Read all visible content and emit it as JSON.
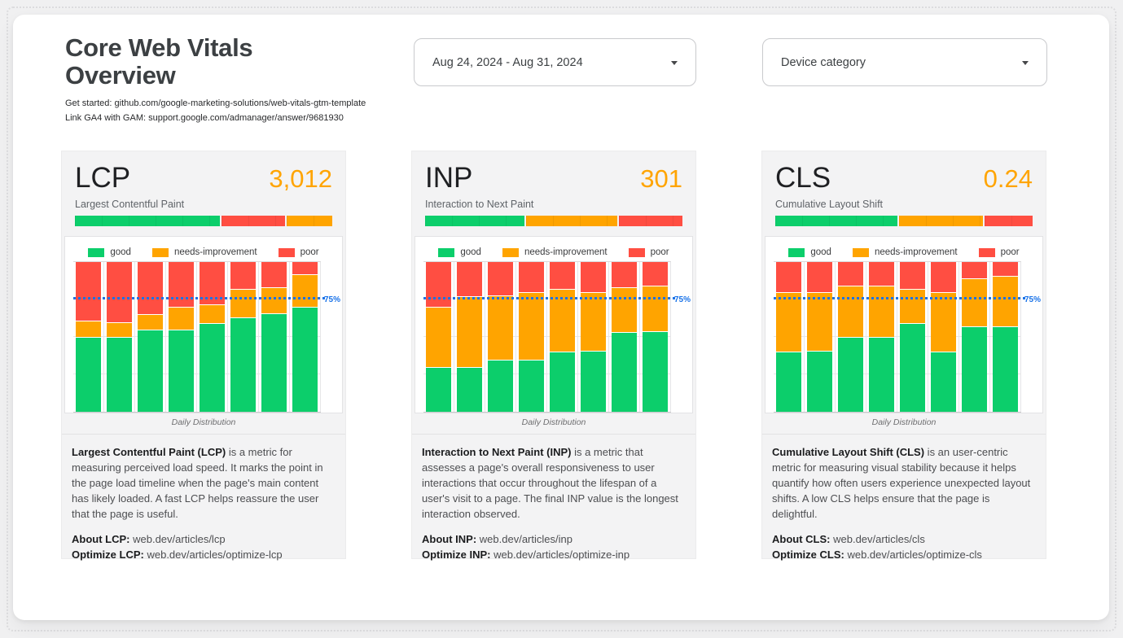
{
  "page": {
    "title_line1": "Core Web Vitals",
    "title_line2": "Overview",
    "links": [
      "Get started: github.com/google-marketing-solutions/web-vitals-gtm-template",
      "Link GA4 with GAM: support.google.com/admanager/answer/9681930"
    ]
  },
  "filters": {
    "date_range": "Aug 24, 2024 - Aug 31, 2024",
    "device_category": "Device category"
  },
  "legend": {
    "good": "good",
    "needs_improvement": "needs-improvement",
    "poor": "poor"
  },
  "colors": {
    "good": "#0CCE6B",
    "needs_improvement": "#FFA400",
    "poor": "#FF4E42",
    "value_accent": "#FFA400",
    "reference_line": "#1A73E8"
  },
  "reference": {
    "label": "75%",
    "value": 75
  },
  "caption": "Daily Distribution",
  "cards": [
    {
      "title": "LCP",
      "value": "3,012",
      "subtitle": "Largest Contentful Paint",
      "description_bold": "Largest Contentful Paint (LCP)",
      "description_rest": " is a metric for measuring perceived load speed. It marks the point in the page load timeline when the page's main content has likely loaded. A fast LCP helps reassure the user that the page is useful.",
      "about_label": "About LCP:",
      "about_url": "web.dev/articles/lcp",
      "optimize_label": "Optimize LCP:",
      "optimize_url": "web.dev/articles/optimize-lcp"
    },
    {
      "title": "INP",
      "value": "301",
      "subtitle": "Interaction to Next Paint",
      "description_bold": "Interaction to Next Paint (INP)",
      "description_rest": " is a metric that assesses a page's overall responsiveness to user interactions that occur throughout the lifespan of a user's visit to a page. The final INP value is the longest interaction observed.",
      "about_label": "About INP:",
      "about_url": "web.dev/articles/inp",
      "optimize_label": "Optimize INP:",
      "optimize_url": "web.dev/articles/optimize-inp"
    },
    {
      "title": "CLS",
      "value": "0.24",
      "subtitle": "Cumulative Layout Shift",
      "description_bold": "Cumulative Layout Shift (CLS)",
      "description_rest": " is an user-centric metric for measuring visual stability because it helps quantify how often users experience unexpected layout shifts. A low CLS helps ensure that the page is delightful.",
      "about_label": "About CLS:",
      "about_url": "web.dev/articles/cls",
      "optimize_label": "Optimize CLS:",
      "optimize_url": "web.dev/articles/optimize-cls"
    }
  ],
  "chart_data": [
    {
      "metric": "LCP",
      "type": "bar",
      "stacked": "percent",
      "title": "Daily Distribution",
      "ylim": [
        0,
        100
      ],
      "grid": [
        25,
        50
      ],
      "reference_line": {
        "value": 75,
        "label": "75%"
      },
      "summary": [
        {
          "key": "good",
          "pct": 57
        },
        {
          "key": "poor",
          "pct": 25
        },
        {
          "key": "needs_improvement",
          "pct": 18
        }
      ],
      "series": [
        {
          "key": "good",
          "name": "good",
          "values": [
            50,
            50,
            55,
            55,
            59,
            63,
            66,
            70
          ]
        },
        {
          "key": "needs_improvement",
          "name": "needs-improvement",
          "values": [
            11,
            10,
            10,
            15,
            13,
            19,
            17,
            22
          ]
        },
        {
          "key": "poor",
          "name": "poor",
          "values": [
            39,
            40,
            35,
            30,
            28,
            18,
            17,
            8
          ]
        }
      ]
    },
    {
      "metric": "INP",
      "type": "bar",
      "stacked": "percent",
      "title": "Daily Distribution",
      "ylim": [
        0,
        100
      ],
      "grid": [
        25,
        50
      ],
      "reference_line": {
        "value": 75,
        "label": "75%"
      },
      "summary": [
        {
          "key": "good",
          "pct": 39
        },
        {
          "key": "needs_improvement",
          "pct": 36
        },
        {
          "key": "poor",
          "pct": 25
        }
      ],
      "series": [
        {
          "key": "good",
          "name": "good",
          "values": [
            30,
            30,
            35,
            35,
            40,
            41,
            53,
            54
          ]
        },
        {
          "key": "needs_improvement",
          "name": "needs-improvement",
          "values": [
            40,
            47,
            43,
            45,
            42,
            39,
            30,
            30
          ]
        },
        {
          "key": "poor",
          "name": "poor",
          "values": [
            30,
            23,
            22,
            20,
            18,
            20,
            17,
            16
          ]
        }
      ]
    },
    {
      "metric": "CLS",
      "type": "bar",
      "stacked": "percent",
      "title": "Daily Distribution",
      "ylim": [
        0,
        100
      ],
      "grid": [
        25,
        50
      ],
      "reference_line": {
        "value": 75,
        "label": "75%"
      },
      "summary": [
        {
          "key": "good",
          "pct": 48
        },
        {
          "key": "needs_improvement",
          "pct": 33
        },
        {
          "key": "poor",
          "pct": 19
        }
      ],
      "series": [
        {
          "key": "good",
          "name": "good",
          "values": [
            40,
            41,
            50,
            50,
            59,
            40,
            57,
            57
          ]
        },
        {
          "key": "needs_improvement",
          "name": "needs-improvement",
          "values": [
            40,
            39,
            34,
            34,
            23,
            40,
            32,
            34
          ]
        },
        {
          "key": "poor",
          "name": "poor",
          "values": [
            20,
            20,
            16,
            16,
            18,
            20,
            11,
            9
          ]
        }
      ]
    }
  ]
}
